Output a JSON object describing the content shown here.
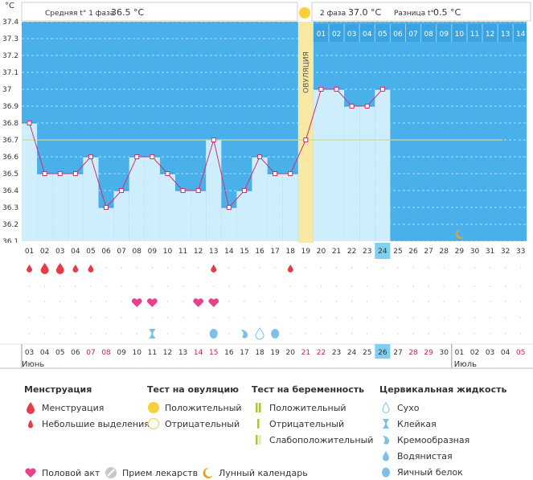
{
  "header": {
    "unit": "°C",
    "phase1_label": "Средняя t° 1 фаза",
    "phase1_value": "36.5 °C",
    "phase2_label": "2 фаза",
    "phase2_value": "37.0 °C",
    "diff_label": "Разница t°",
    "diff_value": "0.5 °C"
  },
  "ovulation_label": "ОВУЛЯЦИЯ",
  "chart_data": {
    "type": "line",
    "y_ticks": [
      "37.4",
      "37.3",
      "37.2",
      "37.1",
      "37",
      "36.9",
      "36.8",
      "36.7",
      "36.6",
      "36.5",
      "36.4",
      "36.3",
      "36.2",
      "36.1"
    ],
    "ylim": [
      36.1,
      37.4
    ],
    "cycle_days": [
      "01",
      "02",
      "03",
      "04",
      "05",
      "06",
      "07",
      "08",
      "09",
      "10",
      "11",
      "12",
      "13",
      "14",
      "15",
      "16",
      "17",
      "18",
      "19",
      "20",
      "21",
      "22",
      "23",
      "24",
      "25",
      "26",
      "27",
      "28",
      "29",
      "30",
      "31",
      "32",
      "33"
    ],
    "phase2_days": [
      "01",
      "02",
      "03",
      "04",
      "05",
      "06",
      "07",
      "08",
      "09",
      "10",
      "11",
      "12",
      "13",
      "14"
    ],
    "temperatures": [
      36.8,
      36.5,
      36.5,
      36.5,
      36.6,
      36.3,
      36.4,
      36.6,
      36.6,
      36.5,
      36.4,
      36.4,
      36.7,
      36.3,
      36.4,
      36.6,
      36.5,
      36.5,
      36.7,
      37.0,
      37.0,
      36.9,
      36.9,
      37.0
    ],
    "average_line": 36.7,
    "ovulation_day": 19,
    "current_day": "24",
    "moon_day": 29,
    "menstruation": [
      {
        "day": 1,
        "kind": "small"
      },
      {
        "day": 2,
        "kind": "big"
      },
      {
        "day": 3,
        "kind": "big"
      },
      {
        "day": 4,
        "kind": "small"
      },
      {
        "day": 5,
        "kind": "small"
      },
      {
        "day": 13,
        "kind": "small"
      },
      {
        "day": 18,
        "kind": "small"
      }
    ],
    "intercourse_days": [
      8,
      9,
      12,
      13
    ],
    "cervical": [
      {
        "day": 9,
        "kind": "sticky"
      },
      {
        "day": 13,
        "kind": "eggwhite"
      },
      {
        "day": 15,
        "kind": "creamy"
      },
      {
        "day": 16,
        "kind": "dry"
      },
      {
        "day": 17,
        "kind": "eggwhite"
      }
    ],
    "dates": [
      {
        "d": "03",
        "c": "#333333"
      },
      {
        "d": "04",
        "c": "#333333"
      },
      {
        "d": "05",
        "c": "#333333"
      },
      {
        "d": "06",
        "c": "#333333"
      },
      {
        "d": "07",
        "c": "#cc2244"
      },
      {
        "d": "08",
        "c": "#cc2244"
      },
      {
        "d": "09",
        "c": "#333333"
      },
      {
        "d": "10",
        "c": "#333333"
      },
      {
        "d": "11",
        "c": "#333333"
      },
      {
        "d": "12",
        "c": "#333333"
      },
      {
        "d": "13",
        "c": "#333333"
      },
      {
        "d": "14",
        "c": "#cc2244"
      },
      {
        "d": "15",
        "c": "#cc2244"
      },
      {
        "d": "16",
        "c": "#333333"
      },
      {
        "d": "17",
        "c": "#333333"
      },
      {
        "d": "18",
        "c": "#333333"
      },
      {
        "d": "19",
        "c": "#333333"
      },
      {
        "d": "20",
        "c": "#333333"
      },
      {
        "d": "21",
        "c": "#cc2244"
      },
      {
        "d": "22",
        "c": "#cc2244"
      },
      {
        "d": "23",
        "c": "#333333"
      },
      {
        "d": "24",
        "c": "#333333"
      },
      {
        "d": "25",
        "c": "#333333"
      },
      {
        "d": "26",
        "c": "#333333"
      },
      {
        "d": "27",
        "c": "#333333"
      },
      {
        "d": "28",
        "c": "#cc2244"
      },
      {
        "d": "29",
        "c": "#cc2244"
      },
      {
        "d": "30",
        "c": "#333333"
      },
      {
        "d": "01",
        "c": "#333333"
      },
      {
        "d": "02",
        "c": "#333333"
      },
      {
        "d": "03",
        "c": "#333333"
      },
      {
        "d": "04",
        "c": "#333333"
      },
      {
        "d": "05",
        "c": "#cc2244"
      }
    ],
    "current_date": "26",
    "month1": "Июнь",
    "month2": "Июль"
  },
  "legend": {
    "menstruation": {
      "title": "Менструация",
      "items": [
        "Менструация",
        "Небольшие выделения"
      ]
    },
    "ovulation_test": {
      "title": "Тест на овуляцию",
      "items": [
        "Положительный",
        "Отрицательный"
      ]
    },
    "pregnancy_test": {
      "title": "Тест на беременность",
      "items": [
        "Положительный",
        "Отрицательный",
        "Слабоположительный"
      ]
    },
    "cervical": {
      "title": "Цервикальная жидкость",
      "items": [
        "Сухо",
        "Клейкая",
        "Кремообразная",
        "Водянистая",
        "Яичный белок"
      ]
    },
    "bottom": [
      "Половой акт",
      "Прием лекарств",
      "Лунный календарь"
    ]
  },
  "colors": {
    "blue_bg": "#4ab0ea",
    "fill": "#cfeefc",
    "line": "#d0306e",
    "ovulation": "#f7e9a3",
    "drop": "#e43c48",
    "heart": "#e8418c",
    "cervical": "#7cc0ea",
    "moon": "#f0a020"
  }
}
